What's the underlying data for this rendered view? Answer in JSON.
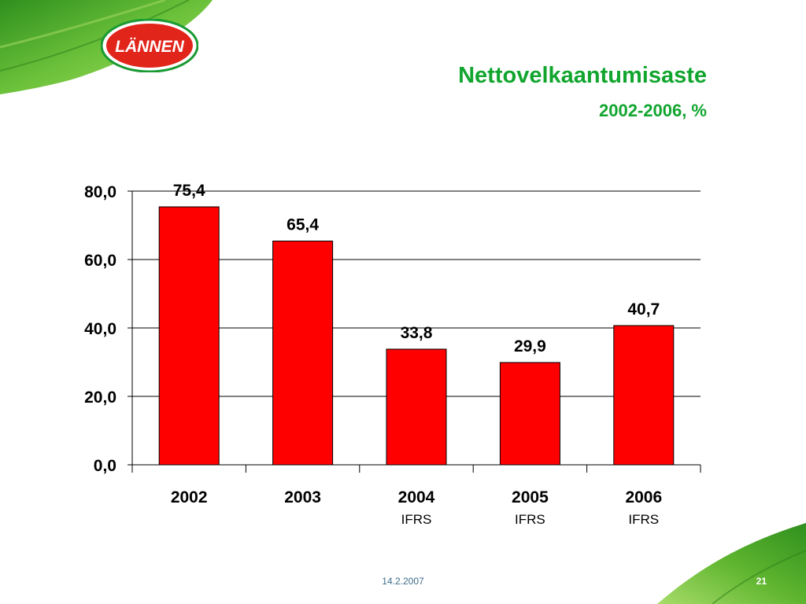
{
  "brand": {
    "logo_text": "LÄNNEN",
    "logo_red": "#e1251b",
    "logo_green": "#1a9a33"
  },
  "header": {
    "title": "Nettovelkaantumisaste",
    "subtitle": "2002-2006, %"
  },
  "chart_data": {
    "type": "bar",
    "title": "Nettovelkaantumisaste",
    "subtitle": "2002-2006, %",
    "categories": [
      "2002",
      "2003",
      "2004",
      "2005",
      "2006"
    ],
    "category_sublabels": [
      "",
      "",
      "IFRS",
      "IFRS",
      "IFRS"
    ],
    "values": [
      75.4,
      65.4,
      33.8,
      29.9,
      40.7
    ],
    "data_labels": [
      "75,4",
      "65,4",
      "33,8",
      "29,9",
      "40,7"
    ],
    "ylim": [
      0,
      80
    ],
    "yticks": [
      0,
      20,
      40,
      60,
      80
    ],
    "ytick_labels": [
      "0,0",
      "20,0",
      "40,0",
      "60,0",
      "80,0"
    ],
    "xlabel": "",
    "ylabel": "",
    "grid": true,
    "bar_color": "#ff0000",
    "legend": false
  },
  "footer": {
    "date": "14.2.2007",
    "slide_number": "21"
  },
  "colors": {
    "title": "#11a52e",
    "leaf_green": "#3fa828"
  }
}
